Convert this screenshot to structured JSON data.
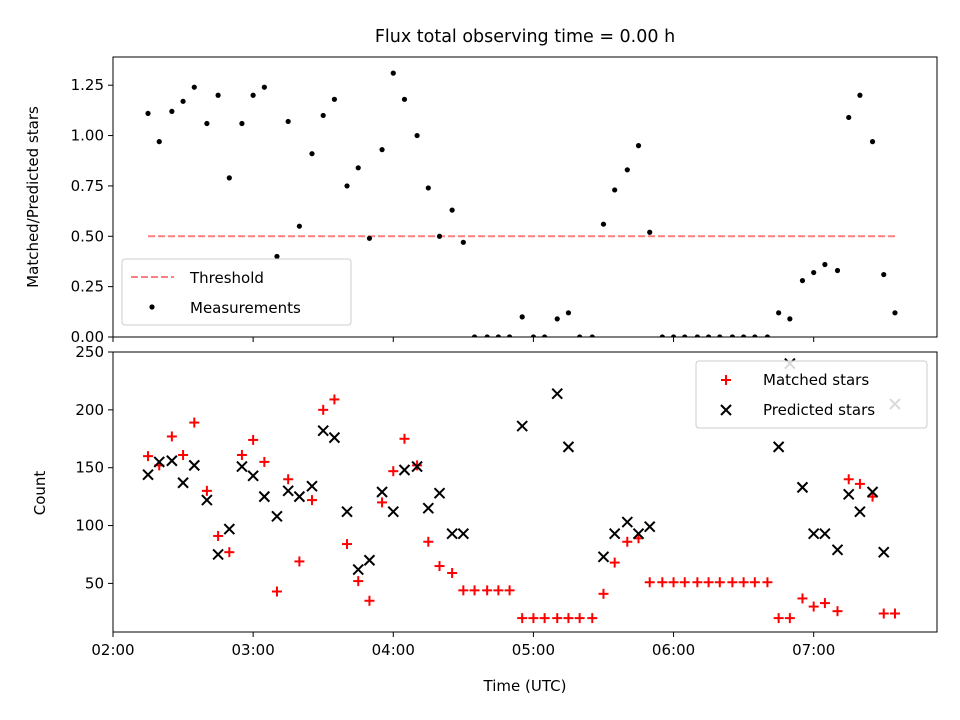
{
  "figure_title": "Flux total observing time = 0.00 h",
  "chart_data": [
    {
      "type": "scatter",
      "title": "Flux total observing time = 0.00 h",
      "xlabel": "",
      "ylabel": "Matched/Predicted stars",
      "x_axis": "time of day (hours UTC)",
      "xlim": [
        2.0,
        7.88
      ],
      "ylim": [
        0,
        1.39
      ],
      "yticks": [
        "0.00",
        "0.25",
        "0.50",
        "0.75",
        "1.00",
        "1.25"
      ],
      "yticks_values": [
        0,
        0.25,
        0.5,
        0.75,
        1.0,
        1.25
      ],
      "legend_position": "lower-left",
      "series": [
        {
          "name": "Threshold",
          "style": "dashed-line",
          "color": "#ff7f7f",
          "points": [
            [
              2.25,
              0.5
            ],
            [
              7.58,
              0.5
            ]
          ]
        },
        {
          "name": "Measurements",
          "style": "dots",
          "color": "#000000",
          "points": [
            [
              2.25,
              1.11
            ],
            [
              2.33,
              0.97
            ],
            [
              2.42,
              1.12
            ],
            [
              2.5,
              1.17
            ],
            [
              2.58,
              1.24
            ],
            [
              2.67,
              1.06
            ],
            [
              2.75,
              1.2
            ],
            [
              2.83,
              0.79
            ],
            [
              2.92,
              1.06
            ],
            [
              3.0,
              1.2
            ],
            [
              3.08,
              1.24
            ],
            [
              3.17,
              0.4
            ],
            [
              3.25,
              1.07
            ],
            [
              3.33,
              0.55
            ],
            [
              3.42,
              0.91
            ],
            [
              3.5,
              1.1
            ],
            [
              3.58,
              1.18
            ],
            [
              3.67,
              0.75
            ],
            [
              3.75,
              0.84
            ],
            [
              3.83,
              0.49
            ],
            [
              3.92,
              0.93
            ],
            [
              4.0,
              1.31
            ],
            [
              4.08,
              1.18
            ],
            [
              4.17,
              1.0
            ],
            [
              4.25,
              0.74
            ],
            [
              4.33,
              0.5
            ],
            [
              4.42,
              0.63
            ],
            [
              4.5,
              0.47
            ],
            [
              4.58,
              0.0
            ],
            [
              4.67,
              0.0
            ],
            [
              4.75,
              0.0
            ],
            [
              4.83,
              0.0
            ],
            [
              4.92,
              0.1
            ],
            [
              5.0,
              0.0
            ],
            [
              5.08,
              0.0
            ],
            [
              5.17,
              0.09
            ],
            [
              5.25,
              0.12
            ],
            [
              5.33,
              0.0
            ],
            [
              5.42,
              0.0
            ],
            [
              5.5,
              0.56
            ],
            [
              5.58,
              0.73
            ],
            [
              5.67,
              0.83
            ],
            [
              5.75,
              0.95
            ],
            [
              5.83,
              0.52
            ],
            [
              5.92,
              0.0
            ],
            [
              6.0,
              0.0
            ],
            [
              6.08,
              0.0
            ],
            [
              6.17,
              0.0
            ],
            [
              6.25,
              0.0
            ],
            [
              6.33,
              0.0
            ],
            [
              6.42,
              0.0
            ],
            [
              6.5,
              0.0
            ],
            [
              6.58,
              0.0
            ],
            [
              6.67,
              0.0
            ],
            [
              6.75,
              0.12
            ],
            [
              6.83,
              0.09
            ],
            [
              6.92,
              0.28
            ],
            [
              7.0,
              0.32
            ],
            [
              7.08,
              0.36
            ],
            [
              7.17,
              0.33
            ],
            [
              7.25,
              1.09
            ],
            [
              7.33,
              1.2
            ],
            [
              7.42,
              0.97
            ],
            [
              7.5,
              0.31
            ],
            [
              7.58,
              0.12
            ]
          ]
        }
      ]
    },
    {
      "type": "scatter",
      "title": "",
      "xlabel": "Time (UTC)",
      "ylabel": "Count",
      "x_axis": "time of day (hours UTC)",
      "xlim": [
        2.0,
        7.88
      ],
      "ylim": [
        8,
        250
      ],
      "xticks": [
        "02:00",
        "03:00",
        "04:00",
        "05:00",
        "06:00",
        "07:00"
      ],
      "xticks_values": [
        2,
        3,
        4,
        5,
        6,
        7
      ],
      "yticks": [
        "50",
        "100",
        "150",
        "200",
        "250"
      ],
      "yticks_values": [
        50,
        100,
        150,
        200,
        250
      ],
      "legend_position": "top-right",
      "series": [
        {
          "name": "Matched stars",
          "marker": "+",
          "color": "#ff0000",
          "points": [
            [
              2.25,
              160
            ],
            [
              2.33,
              152
            ],
            [
              2.42,
              177
            ],
            [
              2.5,
              161
            ],
            [
              2.58,
              189
            ],
            [
              2.67,
              130
            ],
            [
              2.75,
              91
            ],
            [
              2.83,
              77
            ],
            [
              2.92,
              161
            ],
            [
              3.0,
              174
            ],
            [
              3.08,
              155
            ],
            [
              3.17,
              43
            ],
            [
              3.25,
              140
            ],
            [
              3.33,
              69
            ],
            [
              3.42,
              122
            ],
            [
              3.5,
              200
            ],
            [
              3.58,
              209
            ],
            [
              3.67,
              84
            ],
            [
              3.75,
              52
            ],
            [
              3.83,
              35
            ],
            [
              3.92,
              120
            ],
            [
              4.0,
              147
            ],
            [
              4.08,
              175
            ],
            [
              4.17,
              152
            ],
            [
              4.25,
              86
            ],
            [
              4.33,
              65
            ],
            [
              4.42,
              59
            ],
            [
              4.5,
              44
            ],
            [
              4.58,
              44
            ],
            [
              4.67,
              44
            ],
            [
              4.75,
              44
            ],
            [
              4.83,
              44
            ],
            [
              4.92,
              20
            ],
            [
              5.0,
              20
            ],
            [
              5.08,
              20
            ],
            [
              5.17,
              20
            ],
            [
              5.25,
              20
            ],
            [
              5.33,
              20
            ],
            [
              5.42,
              20
            ],
            [
              5.5,
              41
            ],
            [
              5.58,
              68
            ],
            [
              5.67,
              86
            ],
            [
              5.75,
              89
            ],
            [
              5.83,
              51
            ],
            [
              5.92,
              51
            ],
            [
              6.0,
              51
            ],
            [
              6.08,
              51
            ],
            [
              6.17,
              51
            ],
            [
              6.25,
              51
            ],
            [
              6.33,
              51
            ],
            [
              6.42,
              51
            ],
            [
              6.5,
              51
            ],
            [
              6.58,
              51
            ],
            [
              6.67,
              51
            ],
            [
              6.75,
              20
            ],
            [
              6.83,
              20
            ],
            [
              6.92,
              37
            ],
            [
              7.0,
              30
            ],
            [
              7.08,
              33
            ],
            [
              7.17,
              26
            ],
            [
              7.25,
              140
            ],
            [
              7.33,
              136
            ],
            [
              7.42,
              125
            ],
            [
              7.5,
              24
            ],
            [
              7.58,
              24
            ]
          ]
        },
        {
          "name": "Predicted stars",
          "marker": "x",
          "color": "#000000",
          "points": [
            [
              2.25,
              144
            ],
            [
              2.33,
              155
            ],
            [
              2.42,
              156
            ],
            [
              2.5,
              137
            ],
            [
              2.58,
              152
            ],
            [
              2.67,
              122
            ],
            [
              2.75,
              75
            ],
            [
              2.83,
              97
            ],
            [
              2.92,
              151
            ],
            [
              3.0,
              143
            ],
            [
              3.08,
              125
            ],
            [
              3.17,
              108
            ],
            [
              3.25,
              130
            ],
            [
              3.33,
              125
            ],
            [
              3.42,
              134
            ],
            [
              3.5,
              182
            ],
            [
              3.58,
              176
            ],
            [
              3.67,
              112
            ],
            [
              3.75,
              62
            ],
            [
              3.83,
              70
            ],
            [
              3.92,
              129
            ],
            [
              4.0,
              112
            ],
            [
              4.08,
              148
            ],
            [
              4.17,
              151
            ],
            [
              4.25,
              115
            ],
            [
              4.33,
              128
            ],
            [
              4.42,
              93
            ],
            [
              4.5,
              93
            ],
            [
              4.92,
              186
            ],
            [
              5.17,
              214
            ],
            [
              5.25,
              168
            ],
            [
              5.5,
              73
            ],
            [
              5.58,
              93
            ],
            [
              5.67,
              103
            ],
            [
              5.75,
              93
            ],
            [
              5.83,
              99
            ],
            [
              6.75,
              168
            ],
            [
              6.83,
              240
            ],
            [
              6.92,
              133
            ],
            [
              7.0,
              93
            ],
            [
              7.08,
              93
            ],
            [
              7.17,
              79
            ],
            [
              7.25,
              127
            ],
            [
              7.33,
              112
            ],
            [
              7.42,
              129
            ],
            [
              7.5,
              77
            ],
            [
              7.58,
              205
            ]
          ]
        }
      ]
    }
  ]
}
